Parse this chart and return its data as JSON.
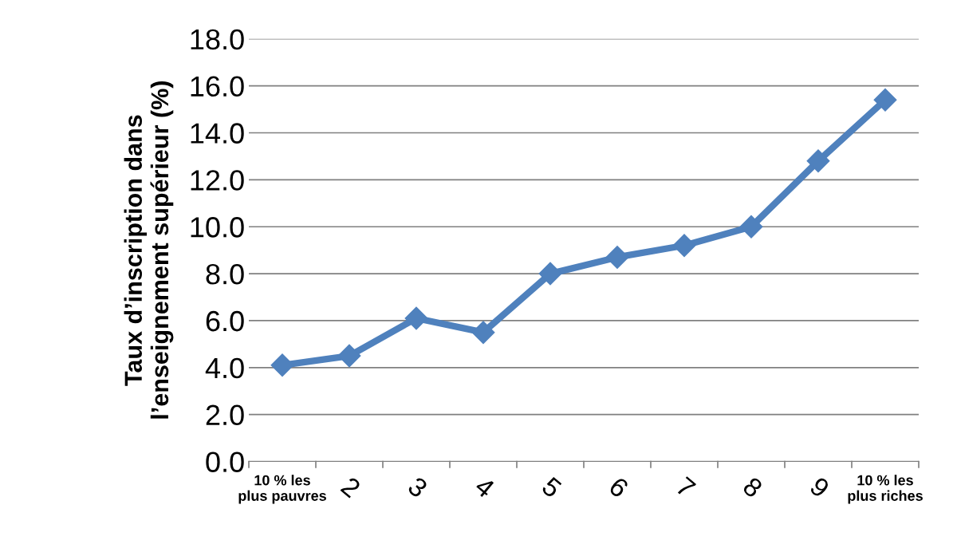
{
  "chart_data": {
    "type": "line",
    "ylabel": "Taux d’inscription dans\nl’enseignement supérieur (%)",
    "categories": [
      "10 % les\nplus pauvres",
      "2",
      "3",
      "4",
      "5",
      "6",
      "7",
      "8",
      "9",
      "10 % les\nplus riches"
    ],
    "series": [
      {
        "color": "#4f81bd",
        "values": [
          4.1,
          4.5,
          6.1,
          5.5,
          8.0,
          8.7,
          9.2,
          10.0,
          12.8,
          15.4
        ]
      }
    ],
    "ylim": [
      0,
      18
    ],
    "yticks": [
      {
        "value": 0,
        "label": "0.0"
      },
      {
        "value": 2,
        "label": "2.0"
      },
      {
        "value": 4,
        "label": "4.0"
      },
      {
        "value": 6,
        "label": "6.0"
      },
      {
        "value": 8,
        "label": "8.0"
      },
      {
        "value": 10,
        "label": "10.0"
      },
      {
        "value": 12,
        "label": "12.0"
      },
      {
        "value": 14,
        "label": "14.0"
      },
      {
        "value": 16,
        "label": "16.0"
      },
      {
        "value": 18,
        "label": "18.0"
      }
    ],
    "grid": "y",
    "marker": "diamond",
    "line_style": "solid",
    "legend": false
  }
}
